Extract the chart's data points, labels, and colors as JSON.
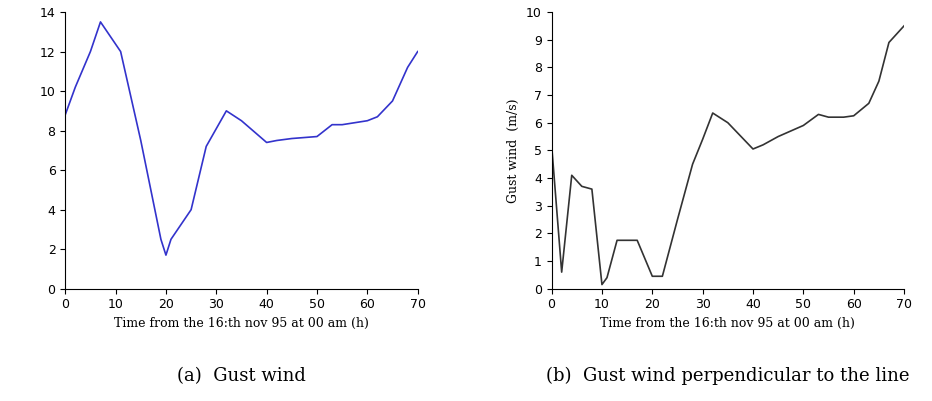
{
  "left": {
    "x": [
      0,
      2,
      5,
      7,
      11,
      15,
      19,
      20,
      21,
      25,
      28,
      30,
      32,
      35,
      40,
      42,
      45,
      50,
      53,
      55,
      60,
      62,
      65,
      68,
      70
    ],
    "y": [
      8.8,
      10.2,
      12.0,
      13.5,
      12.0,
      7.5,
      2.5,
      1.7,
      2.5,
      4.0,
      7.2,
      8.1,
      9.0,
      8.5,
      7.4,
      7.5,
      7.6,
      7.7,
      8.3,
      8.3,
      8.5,
      8.7,
      9.5,
      11.2,
      12.0
    ],
    "color": "#3333cc",
    "xlabel": "Time from the 16:th nov 95 at 00 am (h)",
    "ylabel": "",
    "xlim": [
      0,
      70
    ],
    "ylim": [
      0,
      14
    ],
    "yticks": [
      0,
      2,
      4,
      6,
      8,
      10,
      12,
      14
    ],
    "xticks": [
      0,
      10,
      20,
      30,
      40,
      50,
      60,
      70
    ],
    "caption": "(a)  Gust wind"
  },
  "right": {
    "x": [
      0,
      2,
      4,
      6,
      8,
      10,
      11,
      13,
      17,
      20,
      22,
      25,
      28,
      30,
      32,
      35,
      40,
      42,
      45,
      50,
      53,
      55,
      58,
      60,
      63,
      65,
      67,
      70
    ],
    "y": [
      5.2,
      0.6,
      4.1,
      3.7,
      3.6,
      0.15,
      0.4,
      1.75,
      1.75,
      0.45,
      0.45,
      2.5,
      4.5,
      5.4,
      6.35,
      6.0,
      5.05,
      5.2,
      5.5,
      5.9,
      6.3,
      6.2,
      6.2,
      6.25,
      6.7,
      7.5,
      8.9,
      9.5
    ],
    "color": "#333333",
    "xlabel": "Time from the 16:th nov 95 at 00 am (h)",
    "ylabel": "Gust wind  (m/s)",
    "xlim": [
      0,
      70
    ],
    "ylim": [
      0,
      10
    ],
    "yticks": [
      0,
      1,
      2,
      3,
      4,
      5,
      6,
      7,
      8,
      9,
      10
    ],
    "xticks": [
      0,
      10,
      20,
      30,
      40,
      50,
      60,
      70
    ],
    "caption": "(b)  Gust wind perpendicular to the line"
  },
  "background_color": "#ffffff",
  "linewidth": 1.2,
  "tick_fontsize": 9,
  "label_fontsize": 9,
  "caption_fontsize": 13
}
